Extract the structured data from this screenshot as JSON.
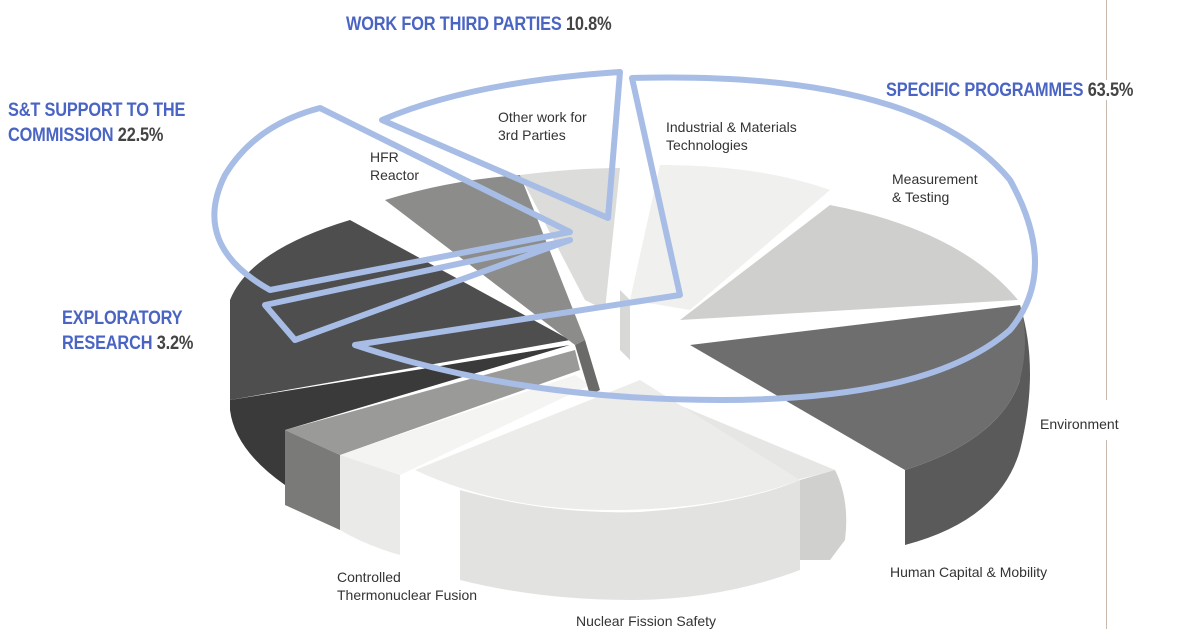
{
  "colors": {
    "group_label": "#4a64c4",
    "percent_label": "#444444",
    "outline": "#a7bde6"
  },
  "chart_data": {
    "type": "pie",
    "three_d": true,
    "groups": [
      {
        "name": "SPECIFIC PROGRAMMES",
        "value_label": "63.5%",
        "value": 63.5
      },
      {
        "name": "WORK FOR THIRD PARTIES",
        "value_label": "10.8%",
        "value": 10.8
      },
      {
        "name_line1": "S&T SUPPORT TO THE",
        "name_line2": "COMMISSION",
        "value_label": "22.5%",
        "value": 22.5
      },
      {
        "name_line1": "EXPLORATORY",
        "name_line2": "RESEARCH",
        "value_label": "3.2%",
        "value": 3.2
      }
    ],
    "slices": [
      {
        "label": "Industrial & Materials Technologies",
        "label_line1": "Industrial & Materials",
        "label_line2": "Technologies",
        "group": "SPECIFIC PROGRAMMES",
        "color": "#f0f0ee"
      },
      {
        "label": "Measurement & Testing",
        "label_line1": "Measurement",
        "label_line2": "& Testing",
        "group": "SPECIFIC PROGRAMMES",
        "color": "#cfcfcd"
      },
      {
        "label": "Environment",
        "group": "SPECIFIC PROGRAMMES",
        "color": "#6e6e6e"
      },
      {
        "label": "Human Capital & Mobility",
        "group": "SPECIFIC PROGRAMMES",
        "color": "#e6e6e4"
      },
      {
        "label": "Nuclear Fission Safety",
        "group": "SPECIFIC PROGRAMMES",
        "color": "#ececea"
      },
      {
        "label": "Controlled Thermonuclear Fusion",
        "label_line1": "Controlled",
        "label_line2": "Thermonuclear Fusion",
        "group": "SPECIFIC PROGRAMMES",
        "color": "#f4f4f2"
      },
      {
        "label": "Exploratory Research",
        "group": "EXPLORATORY RESEARCH",
        "color": "#9a9a98"
      },
      {
        "label": "S&T Support to the Commission",
        "group": "S&T SUPPORT TO THE COMMISSION",
        "color": "#4e4e4e"
      },
      {
        "label": "HFR Reactor",
        "label_line1": "HFR",
        "label_line2": "Reactor",
        "group": "S&T SUPPORT TO THE COMMISSION",
        "color": "#8c8c8a"
      },
      {
        "label": "Other work for 3rd Parties",
        "label_line1": "Other work for",
        "label_line2": "3rd Parties",
        "group": "WORK FOR THIRD PARTIES",
        "color": "#dcdcda"
      }
    ]
  }
}
